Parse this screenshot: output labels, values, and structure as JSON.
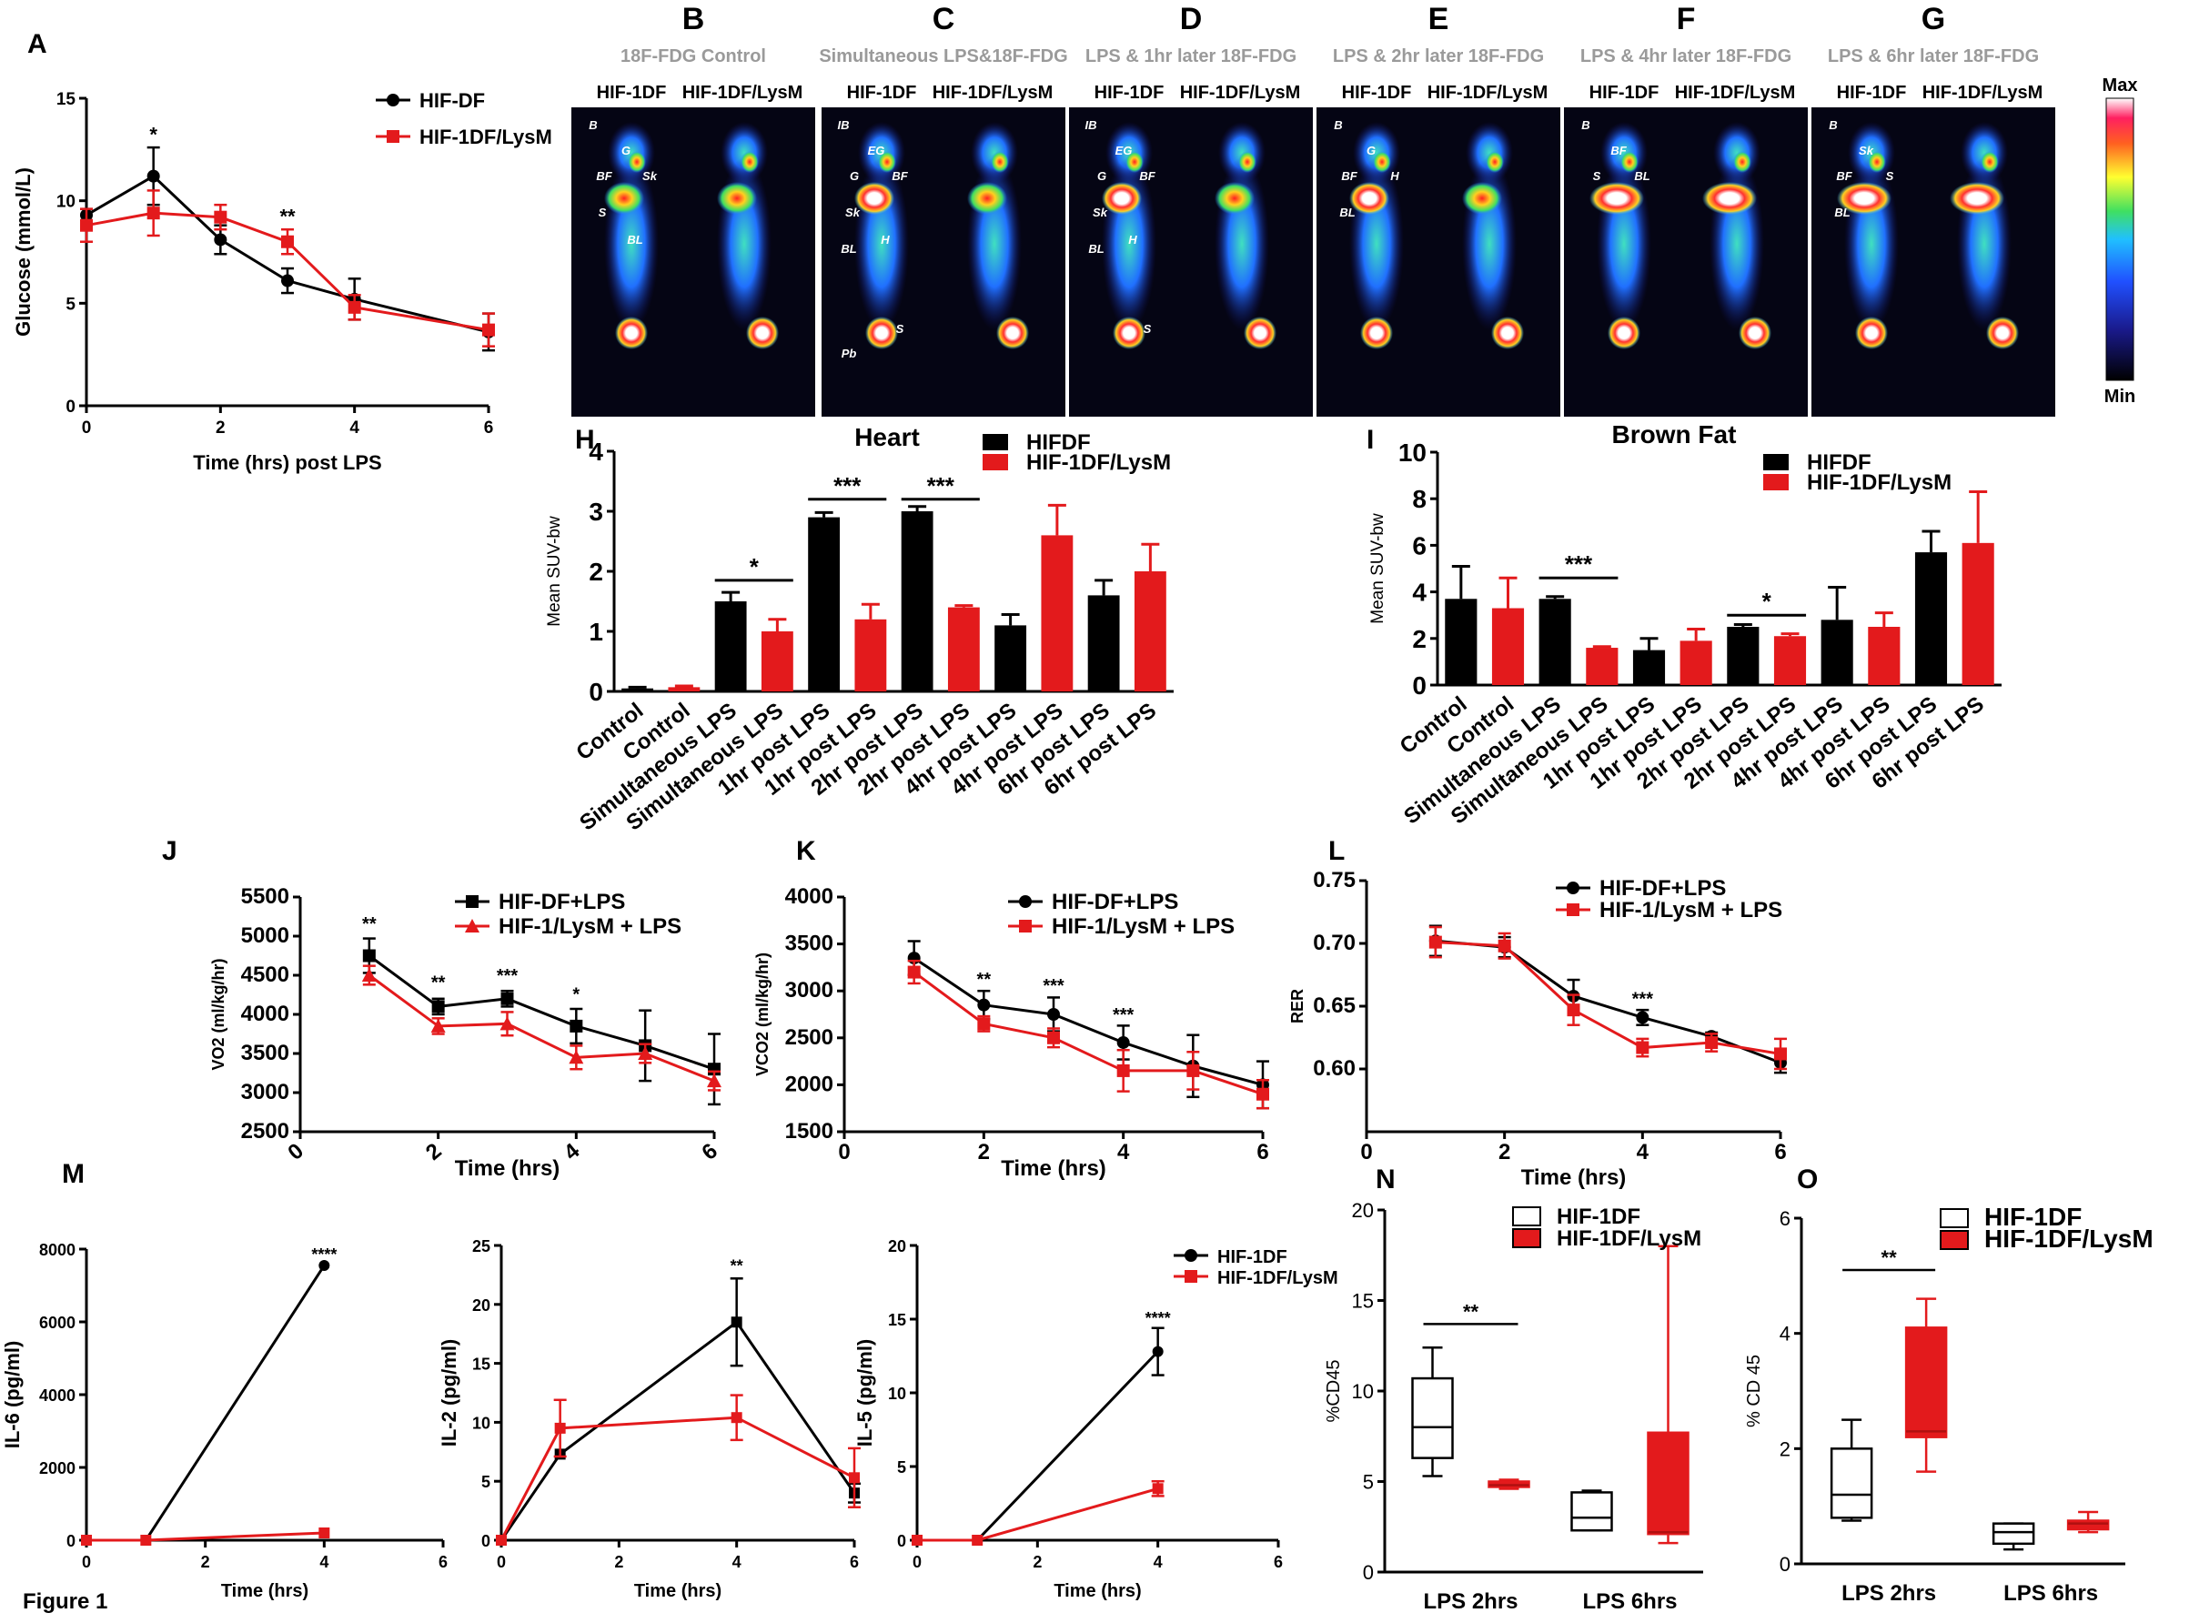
{
  "figure_caption": "Figure 1",
  "colors": {
    "black": "#000000",
    "red": "#e31a1c",
    "pet_bg": "#050514"
  },
  "pet_panel": {
    "colorbar_max": "Max",
    "colorbar_min": "Min",
    "sub_labels": [
      "HIF-1DF",
      "HIF-1DF/LysM"
    ],
    "columns": [
      {
        "letter": "B",
        "title": "18F-FDG Control",
        "organs": [
          "B",
          "G",
          "BF",
          "Sk",
          "S",
          "BL"
        ]
      },
      {
        "letter": "C",
        "title": "Simultaneous LPS&18F-FDG",
        "organs": [
          "IB",
          "EG",
          "G",
          "BF",
          "Sk",
          "H",
          "S",
          "BL",
          "Pb"
        ]
      },
      {
        "letter": "D",
        "title": "LPS & 1hr later 18F-FDG",
        "organs": [
          "IB",
          "EG",
          "G",
          "BF",
          "Sk",
          "H",
          "S",
          "BL"
        ]
      },
      {
        "letter": "E",
        "title": "LPS & 2hr later 18F-FDG",
        "organs": [
          "B",
          "G",
          "BF",
          "H",
          "BL"
        ]
      },
      {
        "letter": "F",
        "title": "LPS & 4hr later 18F-FDG",
        "organs": [
          "B",
          "BF",
          "S",
          "BL"
        ]
      },
      {
        "letter": "G",
        "title": "LPS & 6hr later 18F-FDG",
        "organs": [
          "B",
          "Sk",
          "BF",
          "S",
          "BL"
        ]
      }
    ]
  },
  "chart_data": [
    {
      "id": "A",
      "type": "line",
      "letter": "A",
      "xlabel": "Time (hrs) post LPS",
      "ylabel": "Glucose (mmol/L)",
      "xlim": [
        0,
        6
      ],
      "ylim": [
        0,
        15
      ],
      "xticks": [
        0,
        2,
        4,
        6
      ],
      "yticks": [
        0,
        5,
        10,
        15
      ],
      "series": [
        {
          "name": "HIF-DF",
          "color": "#000000",
          "marker": "circle",
          "x": [
            0,
            1,
            2,
            3,
            4,
            6
          ],
          "y": [
            9.3,
            11.2,
            8.1,
            6.1,
            5.2,
            3.6
          ],
          "err": [
            0.3,
            1.4,
            0.7,
            0.6,
            1.0,
            0.9
          ]
        },
        {
          "name": "HIF-1DF/LysM",
          "color": "#e31a1c",
          "marker": "square",
          "x": [
            0,
            1,
            2,
            3,
            4,
            6
          ],
          "y": [
            8.8,
            9.4,
            9.2,
            8.0,
            4.8,
            3.7
          ],
          "err": [
            0.8,
            1.1,
            0.6,
            0.6,
            0.6,
            0.8
          ]
        }
      ],
      "annotations": [
        {
          "x": 1,
          "y": 12.9,
          "text": "*"
        },
        {
          "x": 3,
          "y": 8.9,
          "text": "**"
        }
      ]
    },
    {
      "id": "H",
      "type": "bar",
      "letter": "H",
      "title": "Heart",
      "ylabel": "Mean SUV-bw",
      "ylim": [
        0,
        4
      ],
      "yticks": [
        0,
        1,
        2,
        3,
        4
      ],
      "categories": [
        "Control",
        "Control",
        "Simultaneous LPS",
        "Simultaneous LPS",
        "1hr post LPS",
        "1hr post LPS",
        "2hr post LPS",
        "2hr post LPS",
        "4hr post LPS",
        "4hr post LPS",
        "6hr post LPS",
        "6hr post LPS"
      ],
      "values": [
        0.05,
        0.07,
        1.5,
        1.0,
        2.9,
        1.2,
        3.0,
        1.4,
        1.1,
        2.6,
        1.6,
        2.0
      ],
      "errors": [
        0.02,
        0.02,
        0.15,
        0.2,
        0.08,
        0.25,
        0.08,
        0.03,
        0.18,
        0.5,
        0.25,
        0.45
      ],
      "bar_series": [
        "HIFDF",
        "HIF-1DF/LysM",
        "HIFDF",
        "HIF-1DF/LysM",
        "HIFDF",
        "HIF-1DF/LysM",
        "HIFDF",
        "HIF-1DF/LysM",
        "HIFDF",
        "HIF-1DF/LysM",
        "HIFDF",
        "HIF-1DF/LysM"
      ],
      "legend": [
        {
          "name": "HIFDF",
          "color": "#000000"
        },
        {
          "name": "HIF-1DF/LysM",
          "color": "#e31a1c"
        }
      ],
      "significance": [
        {
          "from": 2,
          "to": 3,
          "y": 1.85,
          "text": "*"
        },
        {
          "from": 4,
          "to": 5,
          "y": 3.2,
          "text": "***"
        },
        {
          "from": 6,
          "to": 7,
          "y": 3.2,
          "text": "***"
        }
      ]
    },
    {
      "id": "I",
      "type": "bar",
      "letter": "I",
      "title": "Brown Fat",
      "ylabel": "Mean SUV-bw",
      "ylim": [
        0,
        10
      ],
      "yticks": [
        0,
        2,
        4,
        6,
        8,
        10
      ],
      "categories": [
        "Control",
        "Control",
        "Simultaneous LPS",
        "Simultaneous LPS",
        "1hr post LPS",
        "1hr post LPS",
        "2hr post LPS",
        "2hr post LPS",
        "4hr post LPS",
        "4hr post LPS",
        "6hr post LPS",
        "6hr post LPS"
      ],
      "values": [
        3.7,
        3.3,
        3.7,
        1.6,
        1.5,
        1.9,
        2.5,
        2.1,
        2.8,
        2.5,
        5.7,
        6.1
      ],
      "errors": [
        1.4,
        1.3,
        0.1,
        0.05,
        0.5,
        0.5,
        0.1,
        0.1,
        1.4,
        0.6,
        0.9,
        2.2
      ],
      "bar_series": [
        "HIFDF",
        "HIF-1DF/LysM",
        "HIFDF",
        "HIF-1DF/LysM",
        "HIFDF",
        "HIF-1DF/LysM",
        "HIFDF",
        "HIF-1DF/LysM",
        "HIFDF",
        "HIF-1DF/LysM",
        "HIFDF",
        "HIF-1DF/LysM"
      ],
      "legend": [
        {
          "name": "HIFDF",
          "color": "#000000"
        },
        {
          "name": "HIF-1DF/LysM",
          "color": "#e31a1c"
        }
      ],
      "significance": [
        {
          "from": 2,
          "to": 3,
          "y": 4.6,
          "text": "***"
        },
        {
          "from": 6,
          "to": 7,
          "y": 3.0,
          "text": "*"
        }
      ]
    },
    {
      "id": "J",
      "type": "line",
      "letter": "J",
      "xlabel": "Time (hrs)",
      "ylabel": "VO2 (ml/kg/hr)",
      "xlim": [
        0,
        6
      ],
      "ylim": [
        2500,
        5500
      ],
      "xticks": [
        0,
        2,
        4,
        6
      ],
      "yticks": [
        2500,
        3000,
        3500,
        4000,
        4500,
        5000,
        5500
      ],
      "series": [
        {
          "name": "HIF-DF+LPS",
          "color": "#000000",
          "marker": "square",
          "x": [
            1,
            2,
            3,
            4,
            5,
            6
          ],
          "y": [
            4750,
            4100,
            4200,
            3850,
            3600,
            3300
          ],
          "err": [
            220,
            100,
            100,
            220,
            450,
            450
          ]
        },
        {
          "name": "HIF-1/LysM + LPS",
          "color": "#e31a1c",
          "marker": "triangle",
          "x": [
            1,
            2,
            3,
            4,
            5,
            6
          ],
          "y": [
            4500,
            3850,
            3880,
            3450,
            3500,
            3150
          ],
          "err": [
            120,
            100,
            150,
            150,
            120,
            120
          ]
        }
      ],
      "annotations": [
        {
          "x": 1,
          "y": 5080,
          "text": "**"
        },
        {
          "x": 2,
          "y": 4330,
          "text": "**"
        },
        {
          "x": 3,
          "y": 4420,
          "text": "***"
        },
        {
          "x": 4,
          "y": 4180,
          "text": "*"
        }
      ]
    },
    {
      "id": "K",
      "type": "line",
      "letter": "K",
      "xlabel": "Time (hrs)",
      "ylabel": "VCO2 (ml/kg/hr)",
      "xlim": [
        0,
        6
      ],
      "ylim": [
        1500,
        4000
      ],
      "xticks": [
        0,
        2,
        4,
        6
      ],
      "yticks": [
        1500,
        2000,
        2500,
        3000,
        3500,
        4000
      ],
      "series": [
        {
          "name": "HIF-DF+LPS",
          "color": "#000000",
          "marker": "circle",
          "x": [
            1,
            2,
            3,
            4,
            5,
            6
          ],
          "y": [
            3350,
            2850,
            2750,
            2450,
            2200,
            2000
          ],
          "err": [
            180,
            150,
            180,
            180,
            330,
            250
          ]
        },
        {
          "name": "HIF-1/LysM + LPS",
          "color": "#e31a1c",
          "marker": "square",
          "x": [
            1,
            2,
            3,
            4,
            5,
            6
          ],
          "y": [
            3200,
            2650,
            2500,
            2150,
            2150,
            1900
          ],
          "err": [
            120,
            80,
            100,
            220,
            200,
            150
          ]
        }
      ],
      "annotations": [
        {
          "x": 2,
          "y": 3060,
          "text": "**"
        },
        {
          "x": 3,
          "y": 2990,
          "text": "***"
        },
        {
          "x": 4,
          "y": 2680,
          "text": "***"
        }
      ]
    },
    {
      "id": "L",
      "type": "line",
      "letter": "L",
      "xlabel": "Time (hrs)",
      "ylabel": "RER",
      "xlim": [
        0,
        6
      ],
      "ylim": [
        0.55,
        0.75
      ],
      "xticks": [
        0,
        2,
        4,
        6
      ],
      "yticks": [
        0.6,
        0.65,
        0.7,
        0.75
      ],
      "ytick_labels": [
        "0.60",
        "0.65",
        "0.70",
        "0.75"
      ],
      "series": [
        {
          "name": "HIF-DF+LPS",
          "color": "#000000",
          "marker": "circle",
          "x": [
            1,
            2,
            3,
            4,
            5,
            6
          ],
          "y": [
            0.702,
            0.697,
            0.658,
            0.641,
            0.626,
            0.605
          ],
          "err": [
            0.012,
            0.008,
            0.013,
            0.006,
            0.003,
            0.008
          ]
        },
        {
          "name": "HIF-1/LysM + LPS",
          "color": "#e31a1c",
          "marker": "square",
          "x": [
            1,
            2,
            3,
            4,
            5,
            6
          ],
          "y": [
            0.701,
            0.698,
            0.647,
            0.617,
            0.621,
            0.612
          ],
          "err": [
            0.012,
            0.01,
            0.012,
            0.007,
            0.007,
            0.012
          ]
        }
      ],
      "annotations": [
        {
          "x": 4,
          "y": 0.651,
          "text": "***"
        }
      ]
    },
    {
      "id": "M1",
      "type": "line",
      "letter": "M",
      "xlabel": "Time (hrs)",
      "ylabel": "IL-6 (pg/ml)",
      "xlim": [
        0,
        6
      ],
      "ylim": [
        0,
        8000
      ],
      "xticks": [
        0,
        2,
        4,
        6
      ],
      "yticks": [
        0,
        2000,
        4000,
        6000,
        8000
      ],
      "series": [
        {
          "name": "HIF-1DF",
          "color": "#000000",
          "marker": "circle",
          "x": [
            0,
            1,
            4
          ],
          "y": [
            0,
            0,
            7550
          ],
          "err": [
            0,
            0,
            0
          ]
        },
        {
          "name": "HIF-1DF/LysM",
          "color": "#e31a1c",
          "marker": "square",
          "x": [
            0,
            1,
            4
          ],
          "y": [
            0,
            0,
            200
          ],
          "err": [
            0,
            0,
            0
          ]
        }
      ],
      "annotations": [
        {
          "x": 4,
          "y": 7700,
          "text": "****"
        }
      ]
    },
    {
      "id": "M2",
      "type": "line",
      "xlabel": "Time (hrs)",
      "ylabel": "IL-2 (pg/ml)",
      "xlim": [
        0,
        6
      ],
      "ylim": [
        0,
        25
      ],
      "xticks": [
        0,
        2,
        4,
        6
      ],
      "yticks": [
        0,
        5,
        10,
        15,
        20,
        25
      ],
      "series": [
        {
          "name": "HIF-1DF",
          "color": "#000000",
          "marker": "square",
          "x": [
            0,
            1,
            4,
            6
          ],
          "y": [
            0,
            7.3,
            18.5,
            4.0
          ],
          "err": [
            0,
            0,
            3.7,
            0.8
          ]
        },
        {
          "name": "HIF-1DF/LysM",
          "color": "#e31a1c",
          "marker": "square",
          "x": [
            0,
            1,
            4,
            6
          ],
          "y": [
            0,
            9.5,
            10.4,
            5.3
          ],
          "err": [
            0,
            2.4,
            1.9,
            2.5
          ]
        }
      ],
      "annotations": [
        {
          "x": 4,
          "y": 22.8,
          "text": "**"
        }
      ]
    },
    {
      "id": "M3",
      "type": "line",
      "xlabel": "Time (hrs)",
      "ylabel": "IL-5 (pg/ml)",
      "xlim": [
        0,
        6
      ],
      "ylim": [
        0,
        20
      ],
      "xticks": [
        0,
        2,
        4,
        6
      ],
      "yticks": [
        0,
        5,
        10,
        15,
        20
      ],
      "series": [
        {
          "name": "HIF-1DF",
          "color": "#000000",
          "marker": "circle",
          "x": [
            0,
            1,
            4
          ],
          "y": [
            0,
            0,
            12.8
          ],
          "err": [
            0,
            0,
            1.6
          ]
        },
        {
          "name": "HIF-1DF/LysM",
          "color": "#e31a1c",
          "marker": "square",
          "x": [
            0,
            1,
            4
          ],
          "y": [
            0,
            0,
            3.5
          ],
          "err": [
            0,
            0,
            0.5
          ]
        }
      ],
      "annotations": [
        {
          "x": 4,
          "y": 14.7,
          "text": "****"
        }
      ]
    },
    {
      "id": "N",
      "type": "box",
      "letter": "N",
      "ylabel": "%CD45",
      "ylim": [
        0,
        20
      ],
      "yticks": [
        0,
        5,
        10,
        15,
        20
      ],
      "groups": [
        "LPS 2hrs",
        "LPS 6hrs"
      ],
      "legend": [
        {
          "name": "HIF-1DF",
          "fill": "#ffffff"
        },
        {
          "name": "HIF-1DF/LysM",
          "fill": "#e31a1c"
        }
      ],
      "boxes": [
        {
          "group": "LPS 2hrs",
          "series": "HIF-1DF",
          "min": 5.3,
          "q1": 6.3,
          "median": 8.0,
          "q3": 10.7,
          "max": 12.4
        },
        {
          "group": "LPS 2hrs",
          "series": "HIF-1DF/LysM",
          "min": 4.6,
          "q1": 4.7,
          "median": 4.8,
          "q3": 5.0,
          "max": 5.1
        },
        {
          "group": "LPS 6hrs",
          "series": "HIF-1DF",
          "min": 2.3,
          "q1": 2.3,
          "median": 3.0,
          "q3": 4.4,
          "max": 4.5
        },
        {
          "group": "LPS 6hrs",
          "series": "HIF-1DF/LysM",
          "min": 1.6,
          "q1": 2.1,
          "median": 2.2,
          "q3": 7.7,
          "max": 18.0
        }
      ],
      "significance": [
        {
          "from": 0,
          "to": 1,
          "y": 13.7,
          "text": "**"
        }
      ]
    },
    {
      "id": "O",
      "type": "box",
      "letter": "O",
      "ylabel": "% CD 45",
      "ylim": [
        0,
        6
      ],
      "yticks": [
        0,
        2,
        4,
        6
      ],
      "groups": [
        "LPS 2hrs",
        "LPS 6hrs"
      ],
      "legend": [
        {
          "name": "HIF-1DF",
          "fill": "#ffffff"
        },
        {
          "name": "HIF-1DF/LysM",
          "fill": "#e31a1c"
        }
      ],
      "boxes": [
        {
          "group": "LPS 2hrs",
          "series": "HIF-1DF",
          "min": 0.75,
          "q1": 0.8,
          "median": 1.2,
          "q3": 2.0,
          "max": 2.5
        },
        {
          "group": "LPS 2hrs",
          "series": "HIF-1DF/LysM",
          "min": 1.6,
          "q1": 2.2,
          "median": 2.3,
          "q3": 4.1,
          "max": 4.6
        },
        {
          "group": "LPS 6hrs",
          "series": "HIF-1DF",
          "min": 0.25,
          "q1": 0.35,
          "median": 0.55,
          "q3": 0.7,
          "max": 0.7
        },
        {
          "group": "LPS 6hrs",
          "series": "HIF-1DF/LysM",
          "min": 0.55,
          "q1": 0.6,
          "median": 0.7,
          "q3": 0.75,
          "max": 0.9
        }
      ],
      "significance": [
        {
          "from": 0,
          "to": 1,
          "y": 5.1,
          "text": "**"
        }
      ]
    }
  ]
}
